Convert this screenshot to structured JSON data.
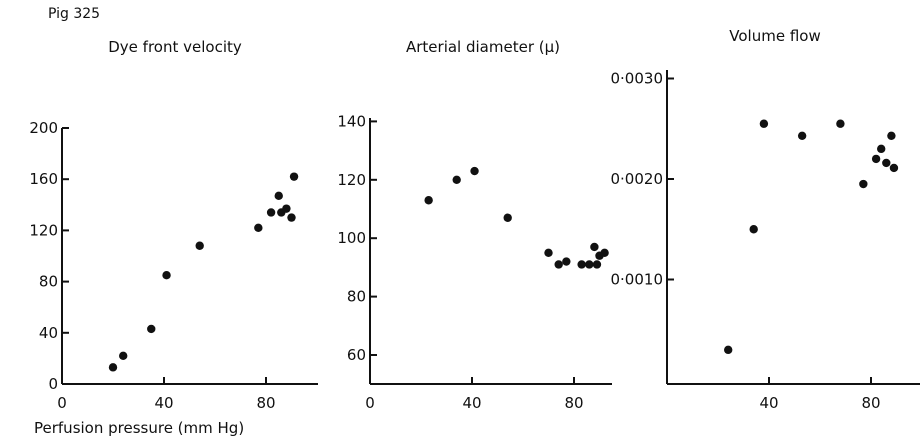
{
  "figure": {
    "label": "Pig 325",
    "xlabel": "Perfusion pressure (mm Hg)"
  },
  "chart_data": [
    {
      "type": "scatter",
      "title": "Dye front velocity",
      "xlabel": "Perfusion pressure (mm Hg)",
      "ylabel": "",
      "xlim": [
        0,
        95
      ],
      "ylim": [
        0,
        200
      ],
      "xticks": [
        "0",
        "40",
        "80"
      ],
      "xtick_values": [
        0,
        40,
        80
      ],
      "yticks": [
        "0",
        "40",
        "80",
        "120",
        "160",
        "200"
      ],
      "ytick_values": [
        0,
        40,
        80,
        120,
        160,
        200
      ],
      "grid": false,
      "points": [
        {
          "x": 20,
          "y": 13
        },
        {
          "x": 24,
          "y": 22
        },
        {
          "x": 35,
          "y": 43
        },
        {
          "x": 41,
          "y": 85
        },
        {
          "x": 54,
          "y": 108
        },
        {
          "x": 77,
          "y": 122
        },
        {
          "x": 82,
          "y": 134
        },
        {
          "x": 85,
          "y": 147
        },
        {
          "x": 86,
          "y": 134
        },
        {
          "x": 88,
          "y": 137
        },
        {
          "x": 90,
          "y": 130
        },
        {
          "x": 91,
          "y": 162
        }
      ]
    },
    {
      "type": "scatter",
      "title": "Arterial diameter (μ)",
      "xlabel": "",
      "ylabel": "",
      "xlim": [
        0,
        95
      ],
      "ylim": [
        55,
        140
      ],
      "xticks": [
        "0",
        "40",
        "80"
      ],
      "xtick_values": [
        0,
        40,
        80
      ],
      "yticks": [
        "60",
        "80",
        "100",
        "120",
        "140"
      ],
      "ytick_values": [
        60,
        80,
        100,
        120,
        140
      ],
      "grid": false,
      "points": [
        {
          "x": 23,
          "y": 113
        },
        {
          "x": 34,
          "y": 120
        },
        {
          "x": 41,
          "y": 123
        },
        {
          "x": 54,
          "y": 107
        },
        {
          "x": 70,
          "y": 95
        },
        {
          "x": 74,
          "y": 91
        },
        {
          "x": 77,
          "y": 92
        },
        {
          "x": 83,
          "y": 91
        },
        {
          "x": 86,
          "y": 91
        },
        {
          "x": 88,
          "y": 97
        },
        {
          "x": 89,
          "y": 91
        },
        {
          "x": 90,
          "y": 94
        },
        {
          "x": 92,
          "y": 95
        }
      ]
    },
    {
      "type": "scatter",
      "title": "Volume flow",
      "xlabel": "",
      "ylabel": "",
      "xlim": [
        0,
        95
      ],
      "ylim": [
        0,
        0.003
      ],
      "xticks": [
        "40",
        "80"
      ],
      "xtick_values": [
        40,
        80
      ],
      "yticks": [
        "0·0010",
        "0·0020",
        "0·0030"
      ],
      "ytick_values": [
        0.001,
        0.002,
        0.003
      ],
      "grid": false,
      "points": [
        {
          "x": 24,
          "y": 0.0003
        },
        {
          "x": 34,
          "y": 0.0015
        },
        {
          "x": 38,
          "y": 0.00255
        },
        {
          "x": 53,
          "y": 0.00243
        },
        {
          "x": 68,
          "y": 0.00255
        },
        {
          "x": 77,
          "y": 0.00195
        },
        {
          "x": 82,
          "y": 0.0022
        },
        {
          "x": 84,
          "y": 0.0023
        },
        {
          "x": 86,
          "y": 0.00216
        },
        {
          "x": 88,
          "y": 0.00243
        },
        {
          "x": 89,
          "y": 0.00211
        }
      ]
    }
  ]
}
